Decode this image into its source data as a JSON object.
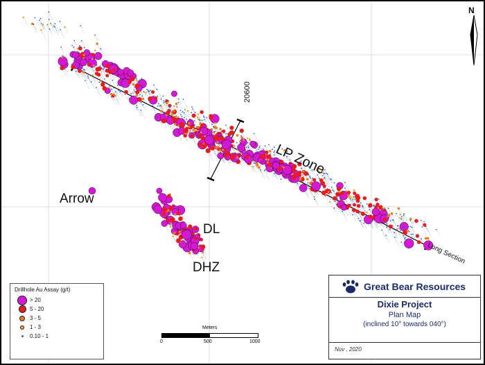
{
  "map": {
    "zone_labels": {
      "arrow": "Arrow",
      "lp_zone": "LP Zone",
      "dl": "DL",
      "dhz": "DHZ"
    },
    "section_labels": {
      "cross_section": "20600",
      "long_section": "Long Section"
    },
    "north_label": "N"
  },
  "legend": {
    "title": "Drillhole Au Assay (g/t)",
    "items": [
      {
        "label": "> 20",
        "color": "#d418d4"
      },
      {
        "label": "5 - 20",
        "color": "#e81c1c"
      },
      {
        "label": "3 - 5",
        "color": "#f07a14"
      },
      {
        "label": "1 - 3",
        "color": "#f2a520"
      },
      {
        "label": "0.10 - 1",
        "color": "#2a5fd6"
      }
    ]
  },
  "scale_bar": {
    "title": "Meters",
    "ticks": [
      "0",
      "500",
      "1000"
    ]
  },
  "title_block": {
    "company": "Great Bear Resources",
    "project": "Dixie Project",
    "map_type": "Plan Map",
    "note": "(inclined 10° towards 040°)",
    "date": "Nov , 2020"
  }
}
